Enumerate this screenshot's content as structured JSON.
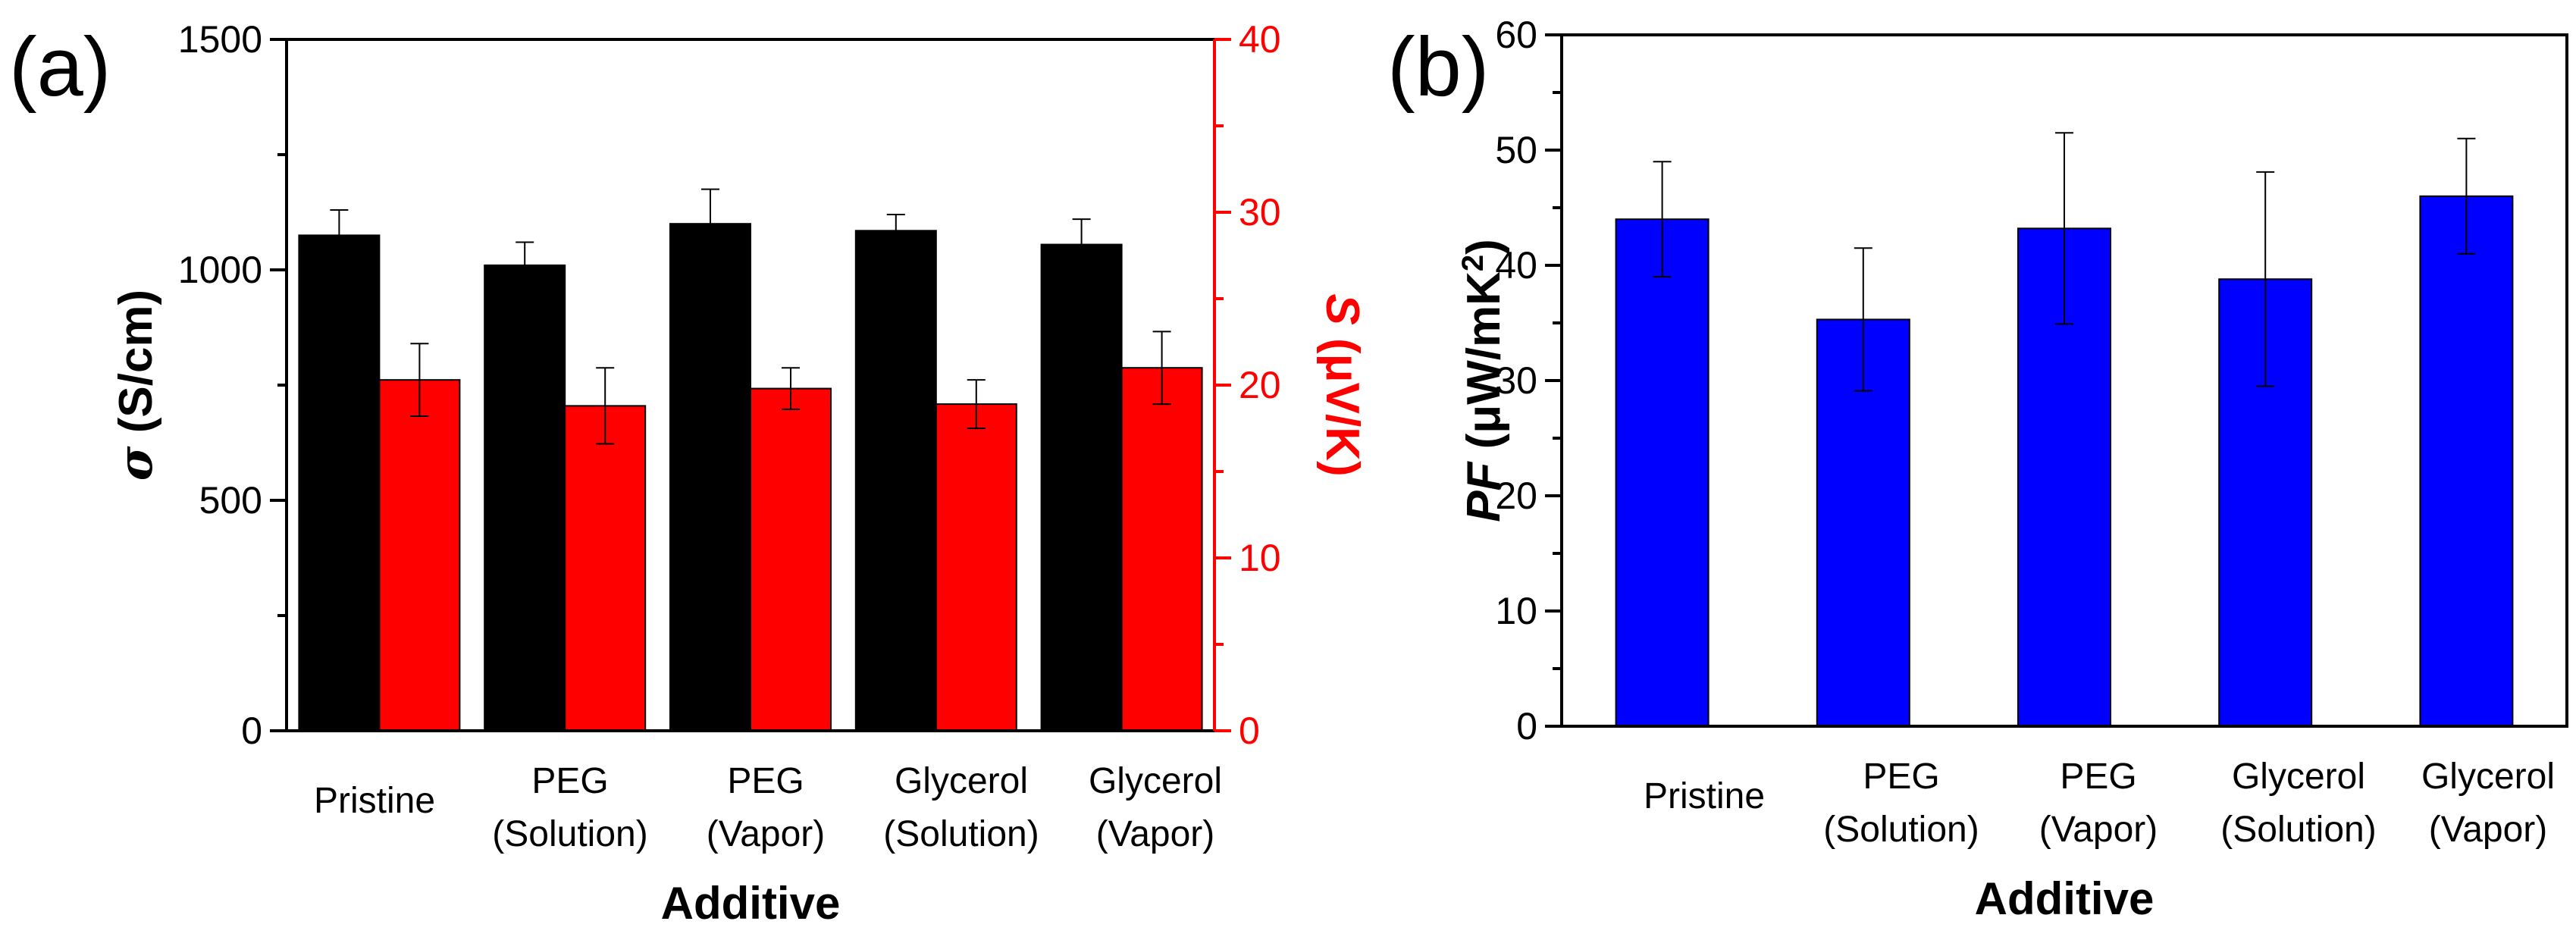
{
  "chart_data": [
    {
      "panel_label": "(a)",
      "type": "bar",
      "xlabel": "Additive",
      "categories": [
        [
          "Pristine"
        ],
        [
          "PEG",
          "(Solution)"
        ],
        [
          "PEG",
          "(Vapor)"
        ],
        [
          "Glycerol",
          "(Solution)"
        ],
        [
          "Glycerol",
          "(Vapor)"
        ]
      ],
      "y_left": {
        "symbol": "σ",
        "unit": " (S/cm)",
        "ylim": [
          0,
          1500
        ],
        "ticks": [
          0,
          500,
          1000,
          1500
        ],
        "color": "#000000"
      },
      "y_right": {
        "symbol": "S",
        "unit": " (μV/K)",
        "ylim": [
          0,
          40
        ],
        "ticks": [
          0,
          10,
          20,
          30,
          40
        ],
        "color": "#ff0000"
      },
      "series": [
        {
          "name": "σ",
          "axis": "left",
          "color": "#000000",
          "values": [
            1075,
            1010,
            1100,
            1085,
            1055
          ],
          "errors": [
            55,
            50,
            75,
            35,
            55
          ]
        },
        {
          "name": "S",
          "axis": "right",
          "color": "#ff0000",
          "values": [
            20.3,
            18.8,
            19.8,
            18.9,
            21.0
          ],
          "errors": [
            2.1,
            2.2,
            1.2,
            1.4,
            2.1
          ]
        }
      ]
    },
    {
      "panel_label": "(b)",
      "type": "bar",
      "xlabel": "Additive",
      "categories": [
        [
          "Pristine"
        ],
        [
          "PEG",
          "(Solution)"
        ],
        [
          "PEG",
          "(Vapor)"
        ],
        [
          "Glycerol",
          "(Solution)"
        ],
        [
          "Glycerol",
          "(Vapor)"
        ]
      ],
      "y_left": {
        "symbol": "PF",
        "unit_prefix": " (μW/mK",
        "unit_sup": "2",
        "unit_suffix": ")",
        "ylim": [
          0,
          60
        ],
        "ticks": [
          0,
          10,
          20,
          30,
          40,
          50,
          60
        ],
        "color": "#000000"
      },
      "series": [
        {
          "name": "PF",
          "axis": "left",
          "color": "#0000ff",
          "values": [
            44,
            35.3,
            43.2,
            38.8,
            46
          ],
          "errors": [
            5,
            6.2,
            8.3,
            9.3,
            5
          ]
        }
      ]
    }
  ]
}
